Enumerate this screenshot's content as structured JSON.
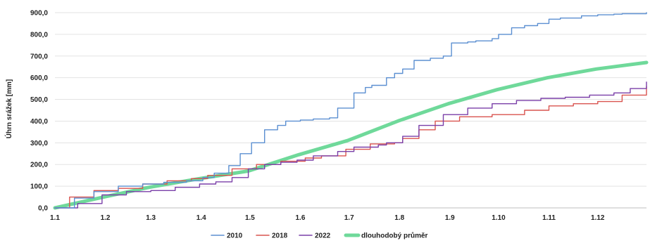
{
  "chart_data": {
    "type": "line",
    "title": "",
    "xlabel": "",
    "ylabel": "Úhrn srážek [mm]",
    "x_tick_labels": [
      "1.1",
      "1.2",
      "1.3",
      "1.4",
      "1.5",
      "1.6",
      "1.7",
      "1.8",
      "1.9",
      "1.10",
      "1.11",
      "1.12"
    ],
    "y_tick_labels": [
      "0,0",
      "100,0",
      "200,0",
      "300,0",
      "400,0",
      "500,0",
      "600,0",
      "700,0",
      "800,0",
      "900,0"
    ],
    "ylim": [
      0,
      900
    ],
    "grid": "horizontal",
    "legend_position": "bottom",
    "series": [
      {
        "name": "2010",
        "color": "#5b8fd1",
        "x": [
          1,
          13,
          25,
          40,
          55,
          68,
          82,
          92,
          99,
          108,
          115,
          122,
          130,
          138,
          143,
          152,
          160,
          170,
          175,
          185,
          192,
          196,
          205,
          210,
          215,
          222,
          232,
          240,
          245,
          255,
          260,
          270,
          274,
          282,
          290,
          298,
          305,
          312,
          325,
          335,
          345,
          350,
          365
        ],
        "y": [
          0,
          45,
          75,
          100,
          110,
          118,
          125,
          140,
          160,
          195,
          250,
          300,
          360,
          380,
          400,
          405,
          410,
          415,
          460,
          530,
          555,
          565,
          600,
          620,
          640,
          680,
          690,
          700,
          760,
          765,
          770,
          780,
          800,
          830,
          840,
          850,
          870,
          875,
          885,
          890,
          893,
          895,
          900
        ]
      },
      {
        "name": "2018",
        "color": "#d9534f",
        "x": [
          1,
          10,
          25,
          40,
          55,
          70,
          85,
          95,
          110,
          125,
          140,
          155,
          165,
          180,
          195,
          210,
          215,
          225,
          235,
          250,
          270,
          290,
          305,
          320,
          335,
          350,
          365
        ],
        "y": [
          0,
          50,
          80,
          90,
          110,
          125,
          135,
          150,
          180,
          200,
          215,
          230,
          240,
          270,
          295,
          300,
          320,
          360,
          400,
          420,
          430,
          450,
          470,
          480,
          490,
          520,
          560
        ]
      },
      {
        "name": "2022",
        "color": "#7a3fa8",
        "x": [
          1,
          15,
          30,
          45,
          60,
          75,
          90,
          100,
          110,
          120,
          130,
          140,
          150,
          160,
          175,
          185,
          200,
          205,
          215,
          225,
          240,
          255,
          270,
          285,
          300,
          315,
          330,
          345,
          355,
          365
        ],
        "y": [
          0,
          20,
          60,
          75,
          80,
          95,
          110,
          120,
          140,
          180,
          200,
          210,
          220,
          240,
          260,
          280,
          290,
          300,
          330,
          380,
          430,
          460,
          480,
          495,
          505,
          510,
          520,
          530,
          550,
          580
        ]
      },
      {
        "name": "dlouhodobý průměr",
        "color": "#6fd99a",
        "x": [
          1,
          31,
          59,
          90,
          120,
          151,
          181,
          212,
          243,
          273,
          304,
          334,
          365
        ],
        "y": [
          0,
          50,
          95,
          135,
          170,
          245,
          310,
          400,
          480,
          545,
          600,
          640,
          670
        ]
      }
    ]
  }
}
